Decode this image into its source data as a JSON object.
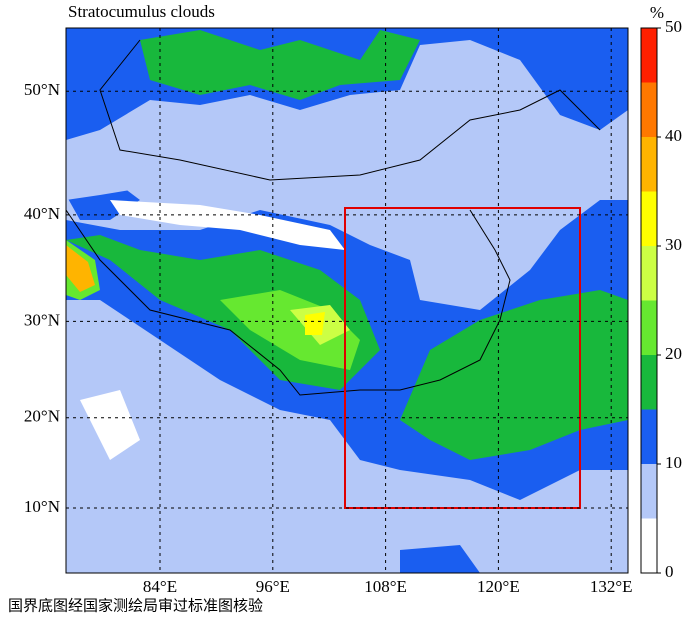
{
  "title": "Stratocumulus clouds",
  "footer": "国界底图经国家测绘局审过标准图核验",
  "map": {
    "lon_ticks": [
      {
        "value": 84,
        "label": "84°E"
      },
      {
        "value": 96,
        "label": "96°E"
      },
      {
        "value": 108,
        "label": "108°E"
      },
      {
        "value": 120,
        "label": "120°E"
      },
      {
        "value": 132,
        "label": "132°E"
      }
    ],
    "lat_ticks": [
      {
        "value": 50,
        "label": "50°N"
      },
      {
        "value": 40,
        "label": "40°N"
      },
      {
        "value": 30,
        "label": "30°N"
      },
      {
        "value": 20,
        "label": "20°N"
      },
      {
        "value": 10,
        "label": "10°N"
      }
    ]
  },
  "colorbar": {
    "unit": "%",
    "bounds": [
      0,
      5,
      10,
      15,
      20,
      25,
      30,
      35,
      40,
      45,
      50
    ],
    "colors": [
      "#ffffff",
      "#b4c8f8",
      "#1a5ef0",
      "#18b83c",
      "#66e830",
      "#ccff44",
      "#ffff00",
      "#ffb400",
      "#ff7800",
      "#ff2000"
    ],
    "ticks": [
      0,
      10,
      20,
      30,
      40,
      50
    ]
  }
}
